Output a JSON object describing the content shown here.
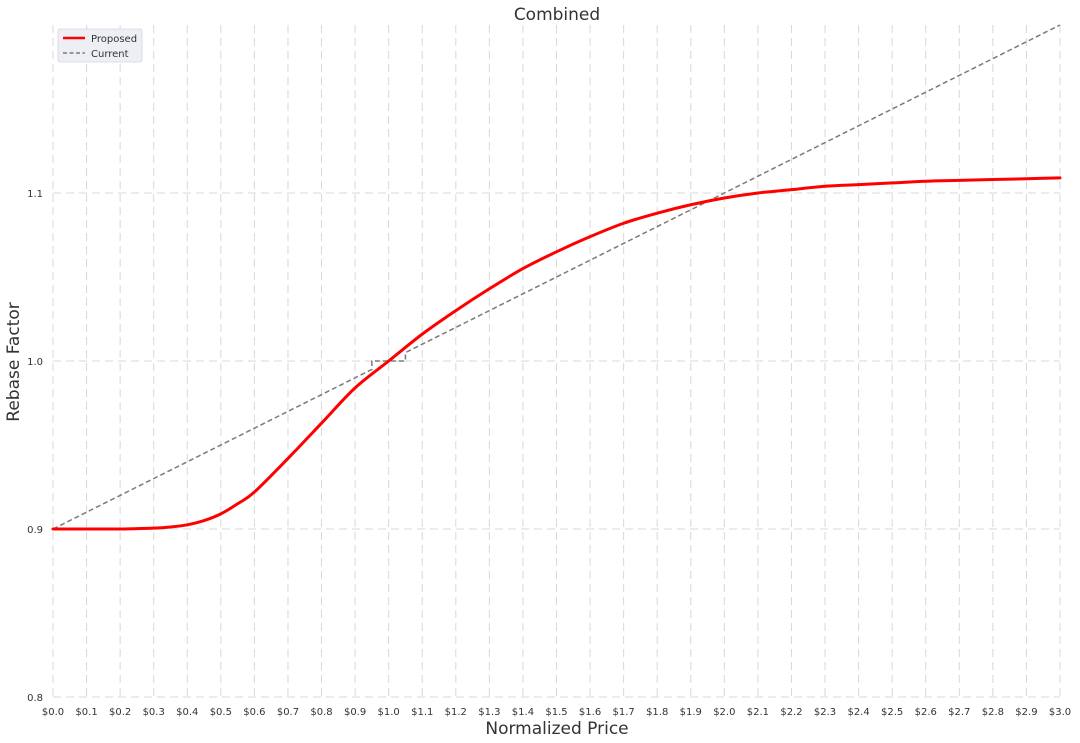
{
  "chart_data": {
    "type": "line",
    "title": "Combined",
    "xlabel": "Normalized Price",
    "ylabel": "Rebase Factor",
    "xlim": [
      0,
      3.0
    ],
    "ylim": [
      0.8,
      1.2
    ],
    "x_ticks": [
      0.0,
      0.1,
      0.2,
      0.3,
      0.4,
      0.5,
      0.6,
      0.7,
      0.8,
      0.9,
      1.0,
      1.1,
      1.2,
      1.3,
      1.4,
      1.5,
      1.6,
      1.7,
      1.8,
      1.9,
      2.0,
      2.1,
      2.2,
      2.3,
      2.4,
      2.5,
      2.6,
      2.7,
      2.8,
      2.9,
      3.0
    ],
    "x_tick_labels": [
      "$0.0",
      "$0.1",
      "$0.2",
      "$0.3",
      "$0.4",
      "$0.5",
      "$0.6",
      "$0.7",
      "$0.8",
      "$0.9",
      "$1.0",
      "$1.1",
      "$1.2",
      "$1.3",
      "$1.4",
      "$1.5",
      "$1.6",
      "$1.7",
      "$1.8",
      "$1.9",
      "$2.0",
      "$2.1",
      "$2.2",
      "$2.3",
      "$2.4",
      "$2.5",
      "$2.6",
      "$2.7",
      "$2.8",
      "$2.9",
      "$3.0"
    ],
    "y_ticks": [
      0.8,
      0.9,
      1.0,
      1.1
    ],
    "y_tick_labels": [
      "0.8",
      "0.9",
      "1.0",
      "1.1"
    ],
    "grid": true,
    "legend_position": "top-left",
    "series": [
      {
        "name": "Proposed",
        "color": "#ff0000",
        "style": "solid",
        "x": [
          0.0,
          0.1,
          0.2,
          0.3,
          0.35,
          0.4,
          0.45,
          0.5,
          0.55,
          0.6,
          0.7,
          0.8,
          0.9,
          1.0,
          1.1,
          1.2,
          1.3,
          1.4,
          1.5,
          1.6,
          1.7,
          1.8,
          1.9,
          2.0,
          2.1,
          2.2,
          2.3,
          2.4,
          2.5,
          2.6,
          2.7,
          2.8,
          2.9,
          3.0
        ],
        "y": [
          0.9,
          0.9,
          0.9,
          0.9005,
          0.9012,
          0.9025,
          0.905,
          0.909,
          0.915,
          0.922,
          0.942,
          0.963,
          0.984,
          1.0,
          1.016,
          1.03,
          1.043,
          1.055,
          1.065,
          1.074,
          1.082,
          1.088,
          1.093,
          1.097,
          1.1,
          1.102,
          1.104,
          1.105,
          1.106,
          1.107,
          1.1075,
          1.108,
          1.1085,
          1.109
        ]
      },
      {
        "name": "Current",
        "color": "#7a7a7a",
        "style": "dashed",
        "x": [
          0.0,
          0.95,
          0.95,
          1.05,
          1.05,
          3.0
        ],
        "y": [
          0.9,
          0.995,
          1.0,
          1.0,
          1.005,
          1.2
        ]
      }
    ]
  }
}
